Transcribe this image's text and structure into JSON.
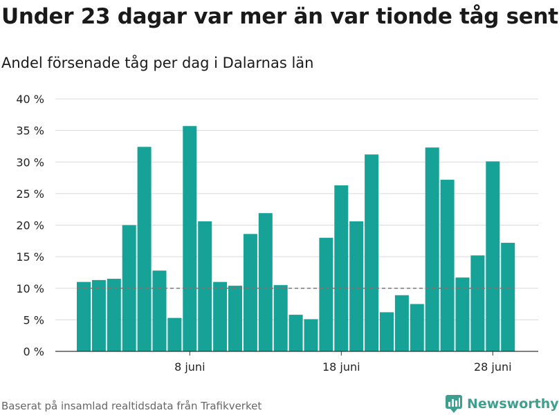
{
  "header": {
    "title": "Under 23 dagar var mer än var tionde tåg sent",
    "subtitle": "Andel försenade tåg per dag i Dalarnas län"
  },
  "footer": {
    "source": "Baserat på insamlad realtidsdata från Trafikverket",
    "brand": "Newsworthy"
  },
  "colors": {
    "bar": "#17a297",
    "grid": "#d9d9d9",
    "reference_line": "#777777",
    "brand": "#3e9f8f"
  },
  "chart_data": {
    "type": "bar",
    "title": "Under 23 dagar var mer än var tionde tåg sent",
    "subtitle": "Andel försenade tåg per dag i Dalarnas län",
    "xlabel": "",
    "ylabel": "",
    "ylim": [
      0,
      40
    ],
    "y_ticks": [
      {
        "value": 0,
        "label": "0 %"
      },
      {
        "value": 5,
        "label": "5 %"
      },
      {
        "value": 10,
        "label": "10 %"
      },
      {
        "value": 15,
        "label": "15 %"
      },
      {
        "value": 20,
        "label": "20 %"
      },
      {
        "value": 25,
        "label": "25 %"
      },
      {
        "value": 30,
        "label": "30 %"
      },
      {
        "value": 35,
        "label": "35 %"
      },
      {
        "value": 40,
        "label": "40 %"
      }
    ],
    "categories": [
      "1 juni",
      "2 juni",
      "3 juni",
      "4 juni",
      "5 juni",
      "6 juni",
      "7 juni",
      "8 juni",
      "9 juni",
      "10 juni",
      "11 juni",
      "12 juni",
      "13 juni",
      "14 juni",
      "15 juni",
      "16 juni",
      "17 juni",
      "18 juni",
      "19 juni",
      "20 juni",
      "21 juni",
      "22 juni",
      "23 juni",
      "24 juni",
      "25 juni",
      "26 juni",
      "27 juni",
      "28 juni",
      "29 juni"
    ],
    "x_ticks": [
      {
        "category": "8 juni",
        "label": "8 juni"
      },
      {
        "category": "18 juni",
        "label": "18 juni"
      },
      {
        "category": "28 juni",
        "label": "28 juni"
      }
    ],
    "values": [
      11.0,
      11.3,
      11.5,
      20.0,
      32.4,
      12.8,
      5.3,
      35.7,
      20.6,
      11.0,
      10.4,
      18.6,
      21.9,
      10.5,
      5.8,
      5.1,
      18.0,
      26.3,
      20.6,
      31.2,
      6.2,
      8.9,
      7.5,
      32.3,
      27.2,
      11.7,
      15.2,
      30.1,
      17.2
    ],
    "reference_line": 10,
    "grid": true,
    "legend": false
  }
}
